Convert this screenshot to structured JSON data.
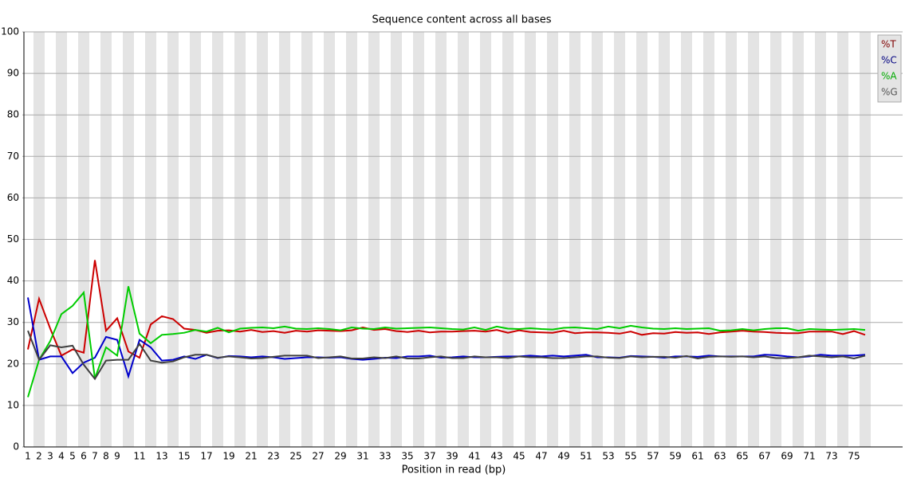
{
  "chart_data": {
    "type": "line",
    "title": "Sequence content across all bases",
    "x_label": "Position in read (bp)",
    "categories": [
      "1",
      "2",
      "3",
      "4",
      "5",
      "6",
      "7",
      "8",
      "9",
      null,
      "11",
      null,
      "13",
      null,
      "15",
      null,
      "17",
      null,
      "19",
      null,
      "21",
      null,
      "23",
      null,
      "25",
      null,
      "27",
      null,
      "29",
      null,
      "31",
      null,
      "33",
      null,
      "35",
      null,
      "37",
      null,
      "39",
      null,
      "41",
      null,
      "43",
      null,
      "45",
      null,
      "47",
      null,
      "49",
      null,
      "51",
      null,
      "53",
      null,
      "55",
      null,
      "57",
      null,
      "59",
      null,
      "61",
      null,
      "63",
      null,
      "65",
      null,
      "67",
      null,
      "69",
      null,
      "71",
      null,
      "73",
      null,
      "75",
      null
    ],
    "ylim": [
      0,
      100
    ],
    "yticks": [
      0,
      10,
      20,
      30,
      40,
      50,
      60,
      70,
      80,
      90,
      100
    ],
    "grid": true,
    "legend": "top-right",
    "series": [
      {
        "name": "%T",
        "color": "#cc0000",
        "label_color": "#800000",
        "values": [
          23.5,
          35.7,
          28.5,
          22,
          23.5,
          22.7,
          45,
          28,
          31,
          23,
          21.5,
          29.5,
          31.5,
          30.8,
          28.5,
          28.2,
          27.5,
          28,
          28.1,
          27.8,
          28.2,
          27.7,
          27.9,
          27.5,
          28.0,
          27.8,
          28.1,
          28.0,
          27.9,
          28.1,
          28.8,
          28.2,
          28.4,
          27.9,
          27.7,
          28.0,
          27.6,
          27.8,
          27.8,
          27.9,
          28.0,
          27.8,
          28.2,
          27.5,
          28.1,
          27.7,
          27.6,
          27.5,
          28.0,
          27.4,
          27.6,
          27.6,
          27.5,
          27.3,
          27.8,
          27.0,
          27.4,
          27.3,
          27.7,
          27.5,
          27.6,
          27.2,
          27.6,
          27.8,
          28.0,
          27.8,
          27.7,
          27.5,
          27.4,
          27.4,
          27.8,
          27.8,
          27.8,
          27.2,
          27.9,
          27.0
        ]
      },
      {
        "name": "%C",
        "color": "#0000cc",
        "label_color": "#000080",
        "values": [
          36,
          21,
          21.8,
          21.8,
          17.8,
          20.3,
          21.5,
          26.5,
          25.8,
          17,
          25.8,
          24,
          20.8,
          21,
          21.8,
          21.2,
          22.2,
          21.4,
          21.9,
          21.8,
          21.6,
          21.8,
          21.6,
          21.2,
          21.4,
          21.6,
          21.6,
          21.5,
          21.6,
          21.2,
          21.0,
          21.2,
          21.5,
          21.4,
          21.8,
          21.8,
          22.0,
          21.5,
          21.6,
          21.8,
          21.6,
          21.6,
          21.7,
          21.8,
          21.8,
          22.0,
          21.8,
          22.0,
          21.8,
          22.0,
          22.2,
          21.6,
          21.6,
          21.5,
          21.9,
          21.8,
          21.7,
          21.5,
          21.8,
          21.8,
          21.7,
          22.0,
          21.8,
          21.8,
          21.8,
          21.8,
          22.2,
          22.1,
          21.8,
          21.6,
          21.8,
          22.2,
          22.0,
          22.0,
          22.0,
          22.2
        ]
      },
      {
        "name": "%A",
        "color": "#00cc00",
        "label_color": "#00aa00",
        "values": [
          12,
          21,
          25.5,
          32,
          34,
          37.2,
          16.5,
          24,
          22,
          38.7,
          27.3,
          25,
          27,
          27.2,
          27.5,
          28.2,
          27.8,
          28.7,
          27.6,
          28.5,
          28.7,
          28.8,
          28.6,
          29.0,
          28.5,
          28.4,
          28.6,
          28.4,
          28.1,
          28.8,
          28.5,
          28.4,
          28.8,
          28.5,
          28.6,
          28.7,
          28.8,
          28.6,
          28.4,
          28.3,
          28.8,
          28.2,
          29.0,
          28.5,
          28.4,
          28.6,
          28.4,
          28.3,
          28.7,
          28.8,
          28.6,
          28.4,
          29.0,
          28.6,
          29.2,
          28.8,
          28.5,
          28.4,
          28.6,
          28.4,
          28.5,
          28.6,
          28.0,
          28.1,
          28.4,
          28.1,
          28.4,
          28.6,
          28.6,
          28.0,
          28.4,
          28.3,
          28.2,
          28.3,
          28.4,
          28.2
        ]
      },
      {
        "name": "%G",
        "color": "#404040",
        "label_color": "#555555",
        "values": [
          28,
          21,
          24.5,
          24,
          24.4,
          19.8,
          16.4,
          20.8,
          21,
          21,
          24.8,
          20.8,
          20.3,
          20.6,
          21.6,
          22.2,
          22.2,
          21.5,
          21.8,
          21.6,
          21.3,
          21.4,
          21.7,
          22.0,
          22.0,
          22.0,
          21.4,
          21.6,
          21.8,
          21.3,
          21.3,
          21.6,
          21.4,
          21.8,
          21.3,
          21.3,
          21.6,
          21.8,
          21.4,
          21.4,
          21.8,
          21.6,
          21.6,
          21.4,
          21.8,
          21.6,
          21.6,
          21.4,
          21.4,
          21.6,
          21.8,
          21.8,
          21.5,
          21.4,
          21.8,
          21.6,
          21.7,
          21.7,
          21.5,
          21.9,
          21.3,
          21.7,
          21.8,
          21.7,
          21.8,
          21.6,
          21.8,
          21.4,
          21.4,
          21.6,
          22.0,
          21.8,
          21.6,
          21.8,
          21.3,
          22.0
        ]
      }
    ]
  }
}
